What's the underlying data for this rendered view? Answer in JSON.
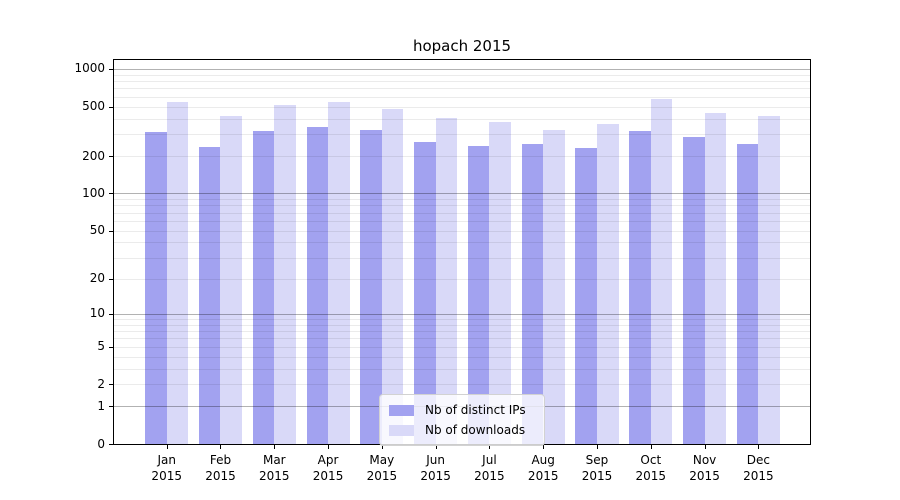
{
  "figure": {
    "background": "#ffffff"
  },
  "chart_data": {
    "type": "bar",
    "title": "hopach 2015",
    "categories": [
      "Jan",
      "Feb",
      "Mar",
      "Apr",
      "May",
      "Jun",
      "Jul",
      "Aug",
      "Sep",
      "Oct",
      "Nov",
      "Dec"
    ],
    "year": "2015",
    "series": [
      {
        "name": "Nb of distinct IPs",
        "color": "#a2a2f0",
        "values": [
          312,
          238,
          318,
          341,
          324,
          261,
          243,
          250,
          234,
          318,
          286,
          250
        ]
      },
      {
        "name": "Nb of downloads",
        "color": "#d9d9f8",
        "values": [
          544,
          418,
          510,
          544,
          478,
          404,
          373,
          326,
          364,
          577,
          446,
          418
        ]
      }
    ],
    "yscale": "log1p",
    "ymax": 1180,
    "ylim": [
      0,
      1180
    ],
    "xlim": [
      -0.98,
      11.96
    ],
    "bar_width": 0.4,
    "yticks": [
      1000,
      500,
      200,
      100,
      50,
      20,
      10,
      5,
      2,
      1,
      0
    ],
    "grid": {
      "on": true,
      "major": [
        1,
        10,
        100,
        1000
      ],
      "minor": [
        2,
        3,
        4,
        5,
        6,
        7,
        8,
        9,
        20,
        30,
        40,
        50,
        60,
        70,
        80,
        90,
        200,
        300,
        400,
        500,
        600,
        700,
        800,
        900
      ]
    },
    "legend": {
      "position": "lower center",
      "items": [
        "Nb of distinct IPs",
        "Nb of downloads"
      ]
    },
    "spine_color": "#000000"
  }
}
